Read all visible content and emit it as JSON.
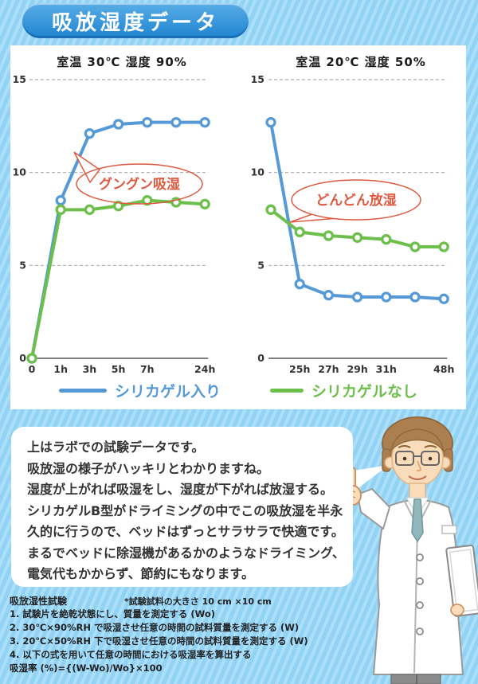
{
  "header": {
    "title": "吸放湿度データ"
  },
  "chart_data": [
    {
      "type": "line",
      "title": "室温 30℃ 湿度 90%",
      "categories": [
        "0",
        "1h",
        "3h",
        "5h",
        "7h",
        "",
        "24h"
      ],
      "xlabel": "",
      "ylabel": "",
      "ylim": [
        0,
        15
      ],
      "yticks": [
        0,
        5,
        10,
        15
      ],
      "grid": true,
      "series": [
        {
          "name": "シリカゲル入り",
          "color": "#5599d6",
          "values": [
            0,
            8.5,
            12.1,
            12.6,
            12.7,
            12.7,
            12.7
          ]
        },
        {
          "name": "シリカゲルなし",
          "color": "#6cbf4b",
          "values": [
            0,
            8.0,
            8.0,
            8.2,
            8.5,
            8.4,
            8.3
          ]
        }
      ],
      "callout": {
        "text": "グングン吸湿",
        "color": "#dd5a41"
      }
    },
    {
      "type": "line",
      "title": "室温 20℃ 湿度 50%",
      "categories": [
        "",
        "25h",
        "27h",
        "29h",
        "31h",
        "",
        "48h"
      ],
      "xlabel": "",
      "ylabel": "",
      "ylim": [
        0,
        15
      ],
      "yticks": [
        0,
        5,
        10,
        15
      ],
      "grid": true,
      "series": [
        {
          "name": "シリカゲル入り",
          "color": "#5599d6",
          "values": [
            12.7,
            4.0,
            3.4,
            3.3,
            3.3,
            3.3,
            3.2
          ]
        },
        {
          "name": "シリカゲルなし",
          "color": "#6cbf4b",
          "values": [
            8.0,
            6.8,
            6.6,
            6.5,
            6.4,
            6.0,
            6.0
          ]
        }
      ],
      "callout": {
        "text": "どんどん放湿",
        "color": "#dd5a41"
      }
    }
  ],
  "legend": [
    {
      "label": "シリカゲル入り",
      "color": "#5599d6"
    },
    {
      "label": "シリカゲルなし",
      "color": "#6cbf4b"
    }
  ],
  "bubble": {
    "lines": [
      "上はラボでの試験データです。",
      "吸放湿の様子がハッキリとわかりますね。",
      "湿度が上がれば吸湿をし、湿度が下がれば放湿する。",
      "シリカゲルB型がドライミングの中でこの吸放湿を半永",
      "久的に行うので、ベッドはずっとサラサラで快適です。",
      "まるでベッドに除湿機があるかのようなドライミング、",
      "電気代もかからず、節約にもなります。"
    ]
  },
  "method": {
    "heading": "吸放湿性試験",
    "note": "*試験試料の大きさ 10 cm ×10 cm",
    "steps": [
      "1. 試験片を絶乾状態にし、質量を測定する (Wo)",
      "2. 30℃×90%RH で吸湿させ任意の時間の試料質量を測定する (W)",
      "3. 20℃×50%RH 下で吸湿させ任意の時間の試料質量を測定する (W)",
      "4. 以下の式を用いて任意の時間における吸湿率を算出する"
    ],
    "formula": "吸湿率 (%)={(W-Wo)/Wo}×100"
  },
  "colors": {
    "accent_blue": "#5599d6",
    "accent_green": "#6cbf4b",
    "callout_red": "#dd5a41",
    "header_blue": "#1f84d0",
    "background_blue": "#9bd7f7"
  }
}
